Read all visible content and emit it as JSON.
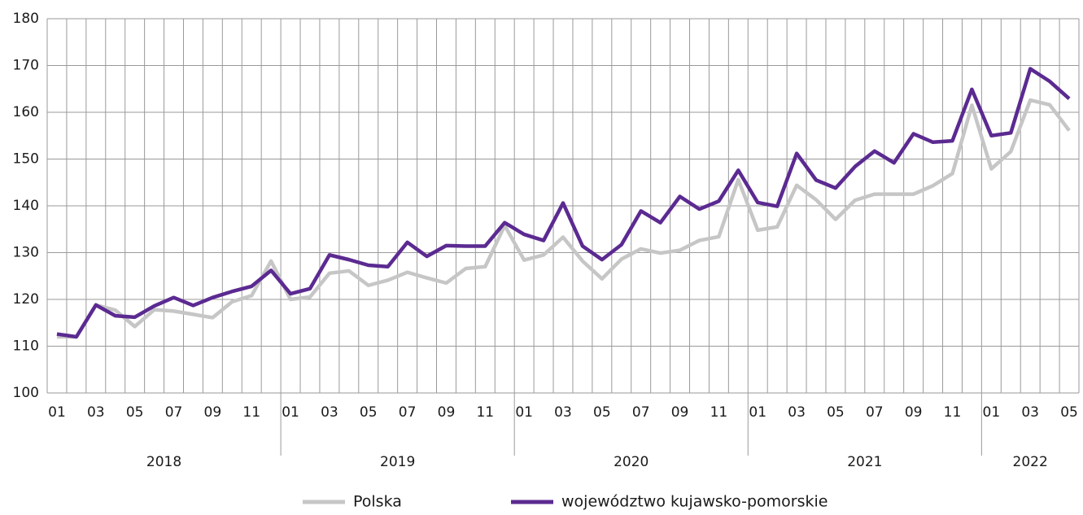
{
  "chart_data": {
    "type": "line",
    "categories": [
      "01",
      null,
      "03",
      null,
      "05",
      null,
      "07",
      null,
      "09",
      null,
      "11",
      null,
      "01",
      null,
      "03",
      null,
      "05",
      null,
      "07",
      null,
      "09",
      null,
      "11",
      null,
      "01",
      null,
      "03",
      null,
      "05",
      null,
      "07",
      null,
      "09",
      null,
      "11",
      null,
      "01",
      null,
      "03",
      null,
      "05",
      null,
      "07",
      null,
      "09",
      null,
      "11",
      null,
      "01",
      null,
      "03",
      null,
      "05"
    ],
    "groups": [
      "2018",
      "2019",
      "2020",
      "2021",
      "2022"
    ],
    "series": [
      {
        "name": "Polska",
        "color": "#c6c6c6",
        "values": [
          112,
          112,
          118.8,
          117.7,
          114.2,
          117.8,
          117.5,
          116.8,
          116.1,
          119.5,
          120.8,
          128.2,
          120,
          120.5,
          125.6,
          126.1,
          123,
          124.1,
          125.8,
          124.6,
          123.5,
          126.6,
          127,
          135.8,
          128.4,
          129.5,
          133.3,
          128.2,
          124.4,
          128.6,
          130.8,
          129.9,
          130.5,
          132.6,
          133.4,
          145.6,
          134.8,
          135.5,
          144.4,
          141.3,
          137.1,
          141.2,
          142.5,
          142.5,
          142.5,
          144.3,
          146.9,
          161.5,
          147.9,
          151.6,
          162.6,
          161.6,
          156.1
        ]
      },
      {
        "name": "województwo kujawsko-pomorskie",
        "color": "#5b2a91",
        "values": [
          112.6,
          112,
          118.8,
          116.5,
          116.2,
          118.6,
          120.4,
          118.7,
          120.4,
          121.7,
          122.8,
          126.2,
          121.2,
          122.3,
          129.5,
          128.5,
          127.3,
          127,
          132.2,
          129.2,
          131.5,
          131.4,
          131.4,
          136.4,
          133.9,
          132.6,
          140.6,
          131.4,
          128.5,
          131.7,
          138.9,
          136.4,
          142,
          139.3,
          141,
          147.6,
          140.7,
          139.9,
          151.2,
          145.5,
          143.8,
          148.4,
          151.7,
          149.2,
          155.4,
          153.6,
          153.9,
          164.9,
          155,
          155.6,
          169.3,
          166.6,
          162.9
        ]
      }
    ],
    "ylim": [
      100,
      180
    ],
    "yticks": [
      100,
      110,
      120,
      130,
      140,
      150,
      160,
      170,
      180
    ],
    "grid": true,
    "legend": "bottom"
  }
}
